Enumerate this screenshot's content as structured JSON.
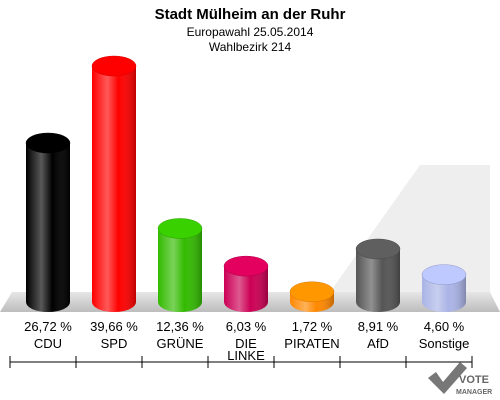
{
  "chart_data": {
    "type": "bar",
    "title": "Stadt Mülheim an der Ruhr",
    "subtitle_lines": [
      "Europawahl 25.05.2014",
      "Wahlbezirk 214"
    ],
    "categories": [
      "CDU",
      "SPD",
      "GRÜNE",
      "DIE LINKE",
      "PIRATEN",
      "AfD",
      "Sonstige"
    ],
    "category_lines": [
      [
        "CDU"
      ],
      [
        "SPD"
      ],
      [
        "GRÜNE"
      ],
      [
        "DIE",
        "LINKE"
      ],
      [
        "PIRATEN"
      ],
      [
        "AfD"
      ],
      [
        "Sonstige"
      ]
    ],
    "values": [
      26.72,
      39.66,
      12.36,
      6.03,
      1.72,
      8.91,
      4.6
    ],
    "value_labels": [
      "26,72 %",
      "39,66 %",
      "12,36 %",
      "6,03 %",
      "1,72 %",
      "8,91 %",
      "4,60 %"
    ],
    "colors": [
      "#000000",
      "#ff0000",
      "#33bb00",
      "#cc0055",
      "#ff8800",
      "#555555",
      "#aab4e6"
    ],
    "ylim": [
      0,
      40
    ],
    "grid": false,
    "legend": "none"
  },
  "logo": {
    "line1": "VOTE",
    "line2": "MANAGER"
  }
}
